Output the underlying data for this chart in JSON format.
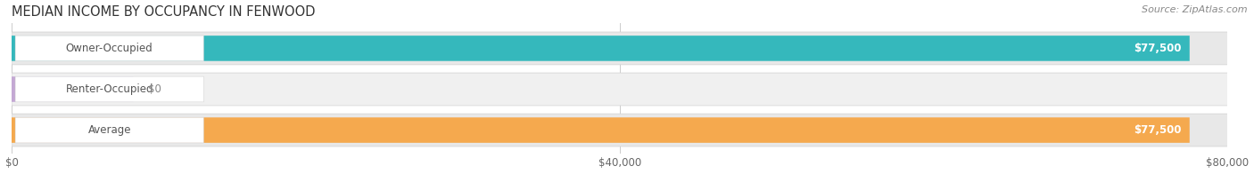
{
  "title": "MEDIAN INCOME BY OCCUPANCY IN FENWOOD",
  "source": "Source: ZipAtlas.com",
  "categories": [
    "Owner-Occupied",
    "Renter-Occupied",
    "Average"
  ],
  "values": [
    77500,
    0,
    77500
  ],
  "bar_colors": [
    "#35b8bc",
    "#c4a8d4",
    "#f5a94e"
  ],
  "bar_bg_colors": [
    "#e8e8e8",
    "#f0f0f0",
    "#e8e8e8"
  ],
  "value_labels": [
    "$77,500",
    "$0",
    "$77,500"
  ],
  "xlim": [
    0,
    80000
  ],
  "xticks": [
    0,
    40000,
    80000
  ],
  "xtick_labels": [
    "$0",
    "$40,000",
    "$80,000"
  ],
  "title_fontsize": 10.5,
  "source_fontsize": 8,
  "label_fontsize": 8.5,
  "value_fontsize": 8.5,
  "bg_color": "#ffffff",
  "renter_bar_width": 8000
}
